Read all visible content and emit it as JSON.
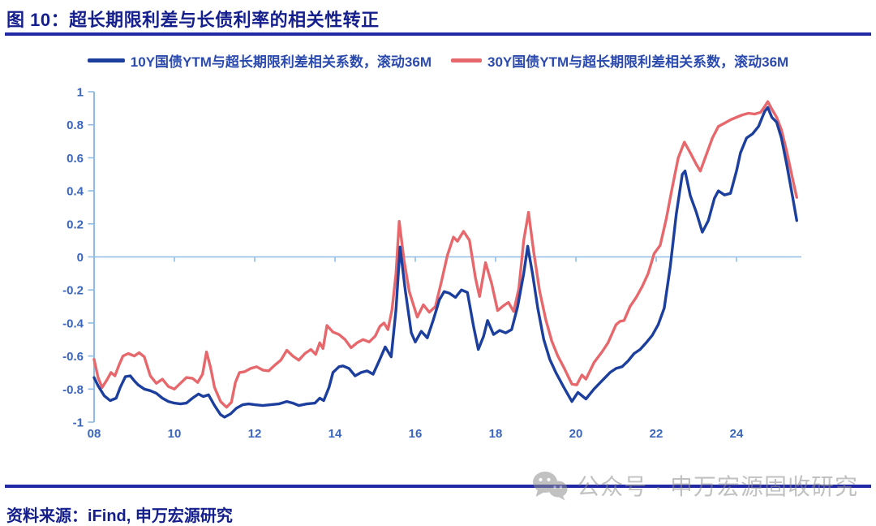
{
  "page": {
    "title": "图 10：超长期限利差与长债利率的相关性转正",
    "source_note": "资料来源：iFind, 申万宏源研究",
    "watermark": {
      "icon": "wechat-icon",
      "text": "公众号 · 申万宏源固收研究"
    }
  },
  "colors": {
    "title_navy": "#141e8c",
    "rule_blue": "#2229a5",
    "legend_text_blue": "#2b4aad",
    "watermark_gray": "#8f8f8f"
  },
  "chart_data": {
    "type": "line",
    "title": "图 10：超长期限利差与长债利率的相关性转正",
    "grid": "zero-line-only",
    "legend_position": "top",
    "axis_color": "#8FBCE6",
    "tick_label_color": "#3B66BC",
    "y_axis": {
      "range": [
        -1,
        1
      ],
      "ticks": [
        {
          "value": 1,
          "label": "1"
        },
        {
          "value": 0.8,
          "label": "0.8"
        },
        {
          "value": 0.6,
          "label": "0.6"
        },
        {
          "value": 0.4,
          "label": "0.4"
        },
        {
          "value": 0.2,
          "label": "0.2"
        },
        {
          "value": 0,
          "label": "0"
        },
        {
          "value": -0.2,
          "label": "-0.2"
        },
        {
          "value": -0.4,
          "label": "-0.4"
        },
        {
          "value": -0.6,
          "label": "-0.6"
        },
        {
          "value": -0.8,
          "label": "-0.8"
        },
        {
          "value": -1,
          "label": "-1"
        }
      ]
    },
    "x_axis": {
      "range": [
        2008,
        2025.6
      ],
      "ticks": [
        {
          "year": 2008,
          "label": "08"
        },
        {
          "year": 2010,
          "label": "10"
        },
        {
          "year": 2012,
          "label": "12"
        },
        {
          "year": 2014,
          "label": "14"
        },
        {
          "year": 2016,
          "label": "16"
        },
        {
          "year": 2018,
          "label": "18"
        },
        {
          "year": 2020,
          "label": "20"
        },
        {
          "year": 2022,
          "label": "22"
        },
        {
          "year": 2024,
          "label": "24"
        }
      ]
    },
    "series": [
      {
        "id": "10y",
        "name": "10Y国债YTM与超长期限利差相关系数，滚动36M",
        "color": "#1C3E9D",
        "points": [
          [
            2008.0,
            -0.73
          ],
          [
            2008.1,
            -0.78
          ],
          [
            2008.25,
            -0.84
          ],
          [
            2008.4,
            -0.87
          ],
          [
            2008.55,
            -0.855
          ],
          [
            2008.65,
            -0.79
          ],
          [
            2008.78,
            -0.725
          ],
          [
            2008.9,
            -0.72
          ],
          [
            2009.0,
            -0.75
          ],
          [
            2009.1,
            -0.775
          ],
          [
            2009.25,
            -0.8
          ],
          [
            2009.4,
            -0.81
          ],
          [
            2009.55,
            -0.825
          ],
          [
            2009.7,
            -0.855
          ],
          [
            2009.85,
            -0.875
          ],
          [
            2010.0,
            -0.885
          ],
          [
            2010.15,
            -0.89
          ],
          [
            2010.3,
            -0.885
          ],
          [
            2010.45,
            -0.855
          ],
          [
            2010.6,
            -0.83
          ],
          [
            2010.72,
            -0.845
          ],
          [
            2010.85,
            -0.835
          ],
          [
            2011.0,
            -0.9
          ],
          [
            2011.15,
            -0.955
          ],
          [
            2011.25,
            -0.97
          ],
          [
            2011.4,
            -0.95
          ],
          [
            2011.55,
            -0.915
          ],
          [
            2011.7,
            -0.895
          ],
          [
            2011.85,
            -0.89
          ],
          [
            2012.0,
            -0.895
          ],
          [
            2012.2,
            -0.9
          ],
          [
            2012.4,
            -0.895
          ],
          [
            2012.6,
            -0.89
          ],
          [
            2012.8,
            -0.875
          ],
          [
            2012.95,
            -0.885
          ],
          [
            2013.1,
            -0.9
          ],
          [
            2013.3,
            -0.89
          ],
          [
            2013.5,
            -0.885
          ],
          [
            2013.62,
            -0.855
          ],
          [
            2013.72,
            -0.87
          ],
          [
            2013.85,
            -0.79
          ],
          [
            2013.95,
            -0.7
          ],
          [
            2014.1,
            -0.665
          ],
          [
            2014.2,
            -0.66
          ],
          [
            2014.35,
            -0.675
          ],
          [
            2014.5,
            -0.72
          ],
          [
            2014.65,
            -0.7
          ],
          [
            2014.8,
            -0.69
          ],
          [
            2014.95,
            -0.71
          ],
          [
            2015.1,
            -0.63
          ],
          [
            2015.25,
            -0.545
          ],
          [
            2015.4,
            -0.605
          ],
          [
            2015.52,
            -0.32
          ],
          [
            2015.62,
            0.06
          ],
          [
            2015.75,
            -0.2
          ],
          [
            2015.9,
            -0.46
          ],
          [
            2016.0,
            -0.515
          ],
          [
            2016.15,
            -0.45
          ],
          [
            2016.3,
            -0.49
          ],
          [
            2016.45,
            -0.38
          ],
          [
            2016.6,
            -0.26
          ],
          [
            2016.72,
            -0.21
          ],
          [
            2016.85,
            -0.22
          ],
          [
            2017.0,
            -0.245
          ],
          [
            2017.15,
            -0.2
          ],
          [
            2017.3,
            -0.215
          ],
          [
            2017.45,
            -0.42
          ],
          [
            2017.57,
            -0.56
          ],
          [
            2017.7,
            -0.48
          ],
          [
            2017.8,
            -0.385
          ],
          [
            2017.95,
            -0.47
          ],
          [
            2018.1,
            -0.445
          ],
          [
            2018.25,
            -0.46
          ],
          [
            2018.4,
            -0.44
          ],
          [
            2018.55,
            -0.3
          ],
          [
            2018.7,
            -0.1
          ],
          [
            2018.8,
            0.065
          ],
          [
            2018.92,
            -0.1
          ],
          [
            2019.05,
            -0.31
          ],
          [
            2019.2,
            -0.5
          ],
          [
            2019.35,
            -0.62
          ],
          [
            2019.5,
            -0.7
          ],
          [
            2019.7,
            -0.79
          ],
          [
            2019.9,
            -0.875
          ],
          [
            2020.05,
            -0.82
          ],
          [
            2020.25,
            -0.86
          ],
          [
            2020.45,
            -0.8
          ],
          [
            2020.65,
            -0.75
          ],
          [
            2020.85,
            -0.7
          ],
          [
            2021.0,
            -0.675
          ],
          [
            2021.15,
            -0.665
          ],
          [
            2021.3,
            -0.63
          ],
          [
            2021.45,
            -0.585
          ],
          [
            2021.6,
            -0.56
          ],
          [
            2021.75,
            -0.52
          ],
          [
            2021.9,
            -0.475
          ],
          [
            2022.05,
            -0.41
          ],
          [
            2022.2,
            -0.31
          ],
          [
            2022.35,
            -0.06
          ],
          [
            2022.5,
            0.26
          ],
          [
            2022.65,
            0.5
          ],
          [
            2022.72,
            0.52
          ],
          [
            2022.85,
            0.37
          ],
          [
            2023.0,
            0.27
          ],
          [
            2023.15,
            0.15
          ],
          [
            2023.3,
            0.22
          ],
          [
            2023.45,
            0.355
          ],
          [
            2023.55,
            0.4
          ],
          [
            2023.7,
            0.375
          ],
          [
            2023.85,
            0.385
          ],
          [
            2024.0,
            0.52
          ],
          [
            2024.1,
            0.63
          ],
          [
            2024.25,
            0.72
          ],
          [
            2024.4,
            0.745
          ],
          [
            2024.55,
            0.79
          ],
          [
            2024.7,
            0.88
          ],
          [
            2024.78,
            0.905
          ],
          [
            2024.88,
            0.845
          ],
          [
            2025.0,
            0.815
          ],
          [
            2025.12,
            0.72
          ],
          [
            2025.25,
            0.56
          ],
          [
            2025.4,
            0.36
          ],
          [
            2025.5,
            0.22
          ]
        ]
      },
      {
        "id": "30y",
        "name": "30Y国债YTM与超长期限利差相关系数，滚动36M",
        "color": "#E6686C",
        "points": [
          [
            2008.0,
            -0.62
          ],
          [
            2008.1,
            -0.73
          ],
          [
            2008.2,
            -0.79
          ],
          [
            2008.32,
            -0.745
          ],
          [
            2008.42,
            -0.7
          ],
          [
            2008.52,
            -0.72
          ],
          [
            2008.62,
            -0.655
          ],
          [
            2008.72,
            -0.6
          ],
          [
            2008.85,
            -0.585
          ],
          [
            2009.0,
            -0.6
          ],
          [
            2009.12,
            -0.58
          ],
          [
            2009.25,
            -0.605
          ],
          [
            2009.4,
            -0.72
          ],
          [
            2009.55,
            -0.765
          ],
          [
            2009.7,
            -0.74
          ],
          [
            2009.85,
            -0.785
          ],
          [
            2010.0,
            -0.8
          ],
          [
            2010.15,
            -0.765
          ],
          [
            2010.3,
            -0.73
          ],
          [
            2010.45,
            -0.735
          ],
          [
            2010.58,
            -0.76
          ],
          [
            2010.7,
            -0.71
          ],
          [
            2010.8,
            -0.575
          ],
          [
            2010.9,
            -0.67
          ],
          [
            2011.0,
            -0.79
          ],
          [
            2011.15,
            -0.875
          ],
          [
            2011.3,
            -0.91
          ],
          [
            2011.42,
            -0.88
          ],
          [
            2011.52,
            -0.76
          ],
          [
            2011.62,
            -0.7
          ],
          [
            2011.75,
            -0.695
          ],
          [
            2011.9,
            -0.675
          ],
          [
            2012.05,
            -0.665
          ],
          [
            2012.2,
            -0.685
          ],
          [
            2012.35,
            -0.69
          ],
          [
            2012.5,
            -0.655
          ],
          [
            2012.65,
            -0.625
          ],
          [
            2012.8,
            -0.565
          ],
          [
            2012.95,
            -0.6
          ],
          [
            2013.1,
            -0.625
          ],
          [
            2013.25,
            -0.585
          ],
          [
            2013.4,
            -0.56
          ],
          [
            2013.52,
            -0.59
          ],
          [
            2013.62,
            -0.52
          ],
          [
            2013.7,
            -0.555
          ],
          [
            2013.8,
            -0.415
          ],
          [
            2013.95,
            -0.455
          ],
          [
            2014.1,
            -0.47
          ],
          [
            2014.25,
            -0.5
          ],
          [
            2014.4,
            -0.55
          ],
          [
            2014.55,
            -0.52
          ],
          [
            2014.7,
            -0.5
          ],
          [
            2014.85,
            -0.515
          ],
          [
            2015.0,
            -0.48
          ],
          [
            2015.12,
            -0.42
          ],
          [
            2015.22,
            -0.4
          ],
          [
            2015.32,
            -0.44
          ],
          [
            2015.42,
            -0.32
          ],
          [
            2015.52,
            -0.1
          ],
          [
            2015.6,
            0.215
          ],
          [
            2015.72,
            -0.02
          ],
          [
            2015.85,
            -0.21
          ],
          [
            2016.05,
            -0.365
          ],
          [
            2016.2,
            -0.29
          ],
          [
            2016.35,
            -0.335
          ],
          [
            2016.5,
            -0.3
          ],
          [
            2016.65,
            -0.15
          ],
          [
            2016.8,
            0.01
          ],
          [
            2016.95,
            0.12
          ],
          [
            2017.05,
            0.095
          ],
          [
            2017.2,
            0.155
          ],
          [
            2017.35,
            0.1
          ],
          [
            2017.5,
            -0.13
          ],
          [
            2017.6,
            -0.24
          ],
          [
            2017.75,
            -0.035
          ],
          [
            2017.9,
            -0.16
          ],
          [
            2018.05,
            -0.325
          ],
          [
            2018.2,
            -0.295
          ],
          [
            2018.32,
            -0.275
          ],
          [
            2018.45,
            -0.33
          ],
          [
            2018.58,
            -0.19
          ],
          [
            2018.7,
            0.1
          ],
          [
            2018.82,
            0.27
          ],
          [
            2018.95,
            0.03
          ],
          [
            2019.1,
            -0.21
          ],
          [
            2019.25,
            -0.38
          ],
          [
            2019.4,
            -0.51
          ],
          [
            2019.55,
            -0.6
          ],
          [
            2019.7,
            -0.67
          ],
          [
            2019.9,
            -0.77
          ],
          [
            2020.02,
            -0.775
          ],
          [
            2020.15,
            -0.715
          ],
          [
            2020.25,
            -0.74
          ],
          [
            2020.45,
            -0.64
          ],
          [
            2020.65,
            -0.575
          ],
          [
            2020.8,
            -0.52
          ],
          [
            2021.0,
            -0.41
          ],
          [
            2021.1,
            -0.39
          ],
          [
            2021.2,
            -0.385
          ],
          [
            2021.35,
            -0.3
          ],
          [
            2021.5,
            -0.245
          ],
          [
            2021.65,
            -0.18
          ],
          [
            2021.8,
            -0.1
          ],
          [
            2021.95,
            0.02
          ],
          [
            2022.1,
            0.07
          ],
          [
            2022.25,
            0.23
          ],
          [
            2022.4,
            0.42
          ],
          [
            2022.55,
            0.6
          ],
          [
            2022.7,
            0.695
          ],
          [
            2022.85,
            0.63
          ],
          [
            2023.0,
            0.56
          ],
          [
            2023.1,
            0.52
          ],
          [
            2023.25,
            0.62
          ],
          [
            2023.4,
            0.72
          ],
          [
            2023.55,
            0.79
          ],
          [
            2023.7,
            0.81
          ],
          [
            2023.85,
            0.83
          ],
          [
            2024.0,
            0.845
          ],
          [
            2024.15,
            0.86
          ],
          [
            2024.3,
            0.87
          ],
          [
            2024.45,
            0.865
          ],
          [
            2024.6,
            0.875
          ],
          [
            2024.7,
            0.91
          ],
          [
            2024.78,
            0.94
          ],
          [
            2024.88,
            0.895
          ],
          [
            2025.0,
            0.845
          ],
          [
            2025.12,
            0.77
          ],
          [
            2025.25,
            0.64
          ],
          [
            2025.4,
            0.47
          ],
          [
            2025.5,
            0.36
          ]
        ]
      }
    ]
  }
}
